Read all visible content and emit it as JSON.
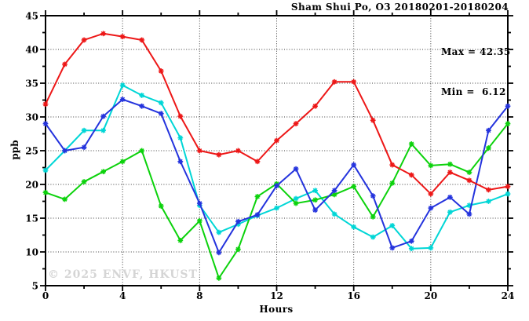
{
  "chart_data": {
    "type": "line",
    "title": "Sham Shui Po, O3 20180201-20180204",
    "xlabel": "Hours",
    "ylabel": "ppb",
    "xlim": [
      0,
      24
    ],
    "ylim": [
      5,
      45
    ],
    "x_major_ticks": [
      0,
      4,
      8,
      12,
      16,
      20,
      24
    ],
    "x_minor_tick_step": 2,
    "y_major_ticks": [
      5,
      10,
      15,
      20,
      25,
      30,
      35,
      40,
      45
    ],
    "y_minor_tick_step": 2.5,
    "grid": "dotted-at-major-ticks",
    "legend": "none",
    "annotations": {
      "max": 42.35,
      "min": 6.12,
      "max_label": "Max = 42.35",
      "min_label": "Min =  6.12"
    },
    "watermark": "© 2025 ENVF, HKUST",
    "x": [
      0,
      1,
      2,
      3,
      4,
      5,
      6,
      7,
      8,
      9,
      10,
      11,
      12,
      13,
      14,
      15,
      16,
      17,
      18,
      19,
      20,
      21,
      22,
      23,
      24
    ],
    "series": [
      {
        "name": "red-line",
        "color": "#ed1717",
        "values": [
          31.9,
          37.8,
          41.4,
          42.35,
          41.9,
          41.4,
          36.8,
          30.1,
          25.0,
          24.4,
          25.0,
          23.4,
          26.5,
          29.0,
          31.6,
          35.2,
          35.2,
          29.5,
          22.9,
          21.4,
          18.6,
          21.8,
          20.6,
          19.2,
          19.7
        ]
      },
      {
        "name": "blue-line",
        "color": "#2433dd",
        "values": [
          29.0,
          25.0,
          25.5,
          30.1,
          32.6,
          31.6,
          30.5,
          23.4,
          17.2,
          9.9,
          14.5,
          15.5,
          19.8,
          22.3,
          16.2,
          19.1,
          22.9,
          18.3,
          10.6,
          11.6,
          16.5,
          18.1,
          15.6,
          28.0,
          31.6
        ]
      },
      {
        "name": "green-line",
        "color": "#0cd20c",
        "values": [
          18.8,
          17.8,
          20.4,
          21.9,
          23.4,
          25.0,
          16.8,
          11.7,
          14.6,
          6.12,
          10.4,
          18.2,
          20.1,
          17.2,
          17.7,
          18.5,
          19.7,
          15.2,
          20.2,
          26.0,
          22.8,
          23.0,
          21.8,
          25.4,
          29.0
        ]
      },
      {
        "name": "cyan-line",
        "color": "#00d6d6",
        "values": [
          22.1,
          25.0,
          28.0,
          28.0,
          34.7,
          33.2,
          32.1,
          26.9,
          16.9,
          12.9,
          14.1,
          15.4,
          16.5,
          17.9,
          19.1,
          15.6,
          13.7,
          12.2,
          13.9,
          10.5,
          10.6,
          15.9,
          16.9,
          17.5,
          18.6
        ]
      }
    ]
  }
}
